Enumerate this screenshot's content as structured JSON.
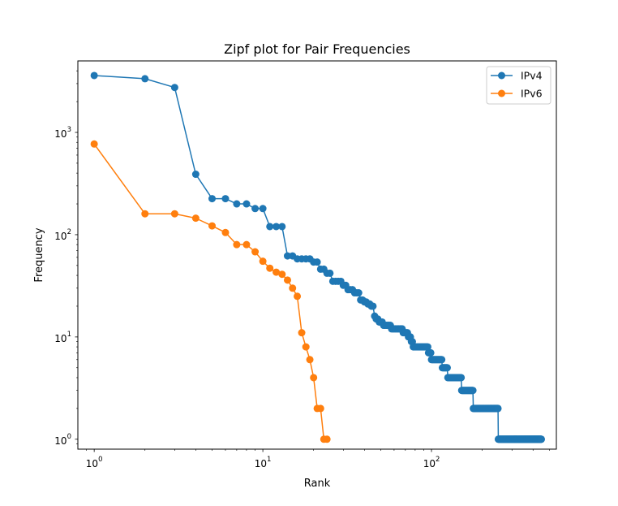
{
  "chart_data": {
    "type": "line",
    "title": "Zipf plot for Pair Frequencies",
    "xlabel": "Rank",
    "ylabel": "Frequency",
    "xscale": "log",
    "yscale": "log",
    "xlim": [
      0.8,
      550
    ],
    "ylim": [
      0.8,
      5000
    ],
    "x_ticks": [
      {
        "value": 1,
        "base": "10",
        "exp": "0"
      },
      {
        "value": 10,
        "base": "10",
        "exp": "1"
      },
      {
        "value": 100,
        "base": "10",
        "exp": "2"
      }
    ],
    "y_ticks": [
      {
        "value": 1,
        "base": "10",
        "exp": "0"
      },
      {
        "value": 10,
        "base": "10",
        "exp": "1"
      },
      {
        "value": 100,
        "base": "10",
        "exp": "2"
      },
      {
        "value": 1000,
        "base": "10",
        "exp": "3"
      }
    ],
    "grid": false,
    "legend_position": "top-right",
    "series": [
      {
        "name": "IPv4",
        "color": "#1f77b4",
        "marker": "circle",
        "y_runs": [
          [
            3600,
            1
          ],
          [
            3350,
            1
          ],
          [
            2750,
            1
          ],
          [
            390,
            1
          ],
          [
            225,
            2
          ],
          [
            200,
            2
          ],
          [
            180,
            2
          ],
          [
            120,
            3
          ],
          [
            62,
            2
          ],
          [
            58,
            4
          ],
          [
            54,
            2
          ],
          [
            46,
            2
          ],
          [
            42,
            2
          ],
          [
            35,
            4
          ],
          [
            32,
            2
          ],
          [
            29,
            3
          ],
          [
            27,
            3
          ],
          [
            23,
            2
          ],
          [
            22,
            2
          ],
          [
            21,
            2
          ],
          [
            20,
            2
          ],
          [
            16,
            1
          ],
          [
            15,
            2
          ],
          [
            14,
            3
          ],
          [
            13,
            6
          ],
          [
            12,
            10
          ],
          [
            11,
            5
          ],
          [
            10,
            3
          ],
          [
            9,
            2
          ],
          [
            8,
            18
          ],
          [
            7,
            4
          ],
          [
            6,
            16
          ],
          [
            5,
            9
          ],
          [
            4,
            26
          ],
          [
            3,
            26
          ],
          [
            2,
            72
          ],
          [
            1,
            200
          ]
        ]
      },
      {
        "name": "IPv6",
        "color": "#ff7f0e",
        "marker": "circle",
        "y_runs": [
          [
            770,
            1
          ],
          [
            160,
            2
          ],
          [
            145,
            1
          ],
          [
            122,
            1
          ],
          [
            105,
            1
          ],
          [
            80,
            2
          ],
          [
            68,
            1
          ],
          [
            55,
            1
          ],
          [
            47,
            1
          ],
          [
            43,
            1
          ],
          [
            41,
            1
          ],
          [
            36,
            1
          ],
          [
            30,
            1
          ],
          [
            25,
            1
          ],
          [
            11,
            1
          ],
          [
            8,
            1
          ],
          [
            6,
            1
          ],
          [
            4,
            1
          ],
          [
            2,
            2
          ],
          [
            1,
            2
          ]
        ]
      }
    ]
  }
}
